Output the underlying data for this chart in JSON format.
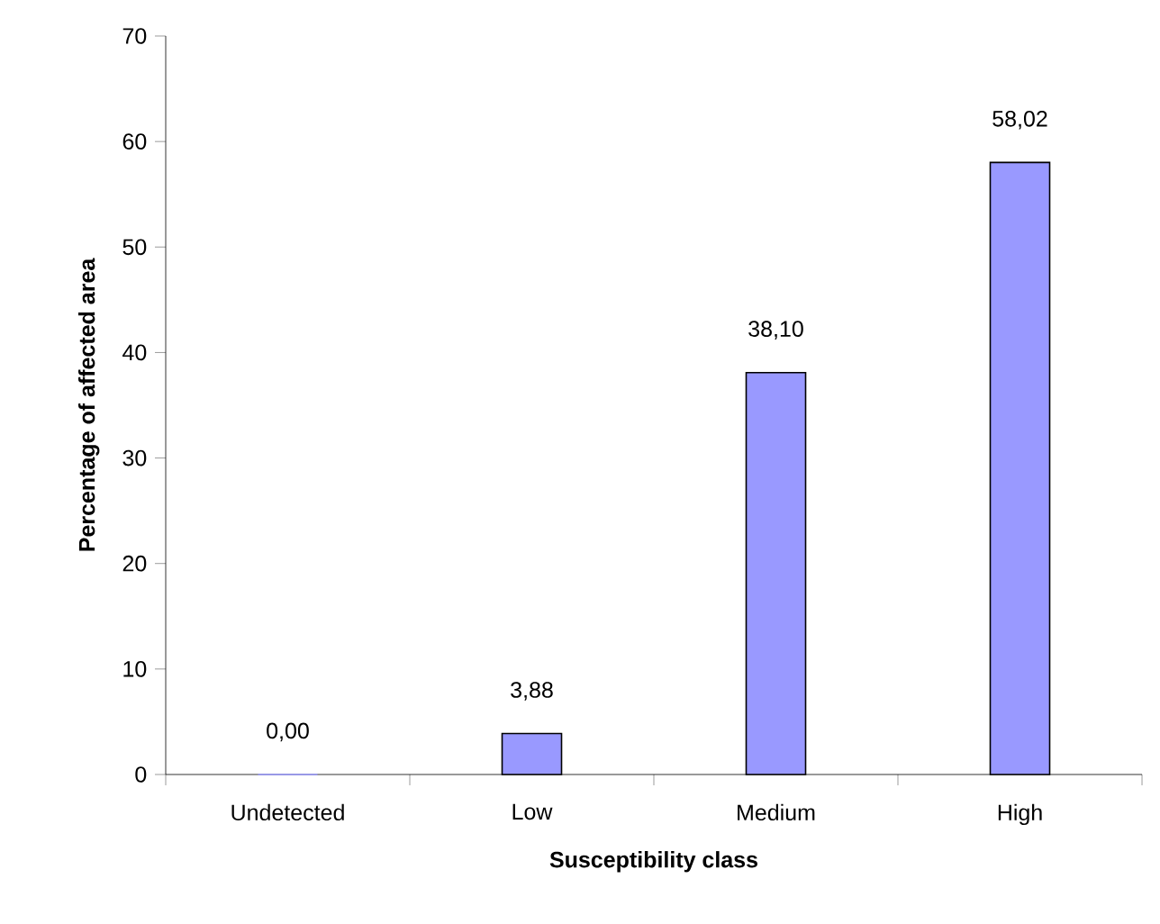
{
  "chart_data": {
    "type": "bar",
    "xlabel": "Susceptibility class",
    "ylabel": "Percentage of affected area",
    "categories": [
      "Undetected",
      "Low",
      "Medium",
      "High"
    ],
    "values": [
      0.0,
      3.88,
      38.1,
      58.02
    ],
    "value_labels": [
      "0,00",
      "3,88",
      "38,10",
      "58,02"
    ],
    "color": "#9999ff",
    "ylim": [
      0,
      70
    ],
    "yticks": [
      0,
      10,
      20,
      30,
      40,
      50,
      60,
      70
    ],
    "grid": false
  }
}
